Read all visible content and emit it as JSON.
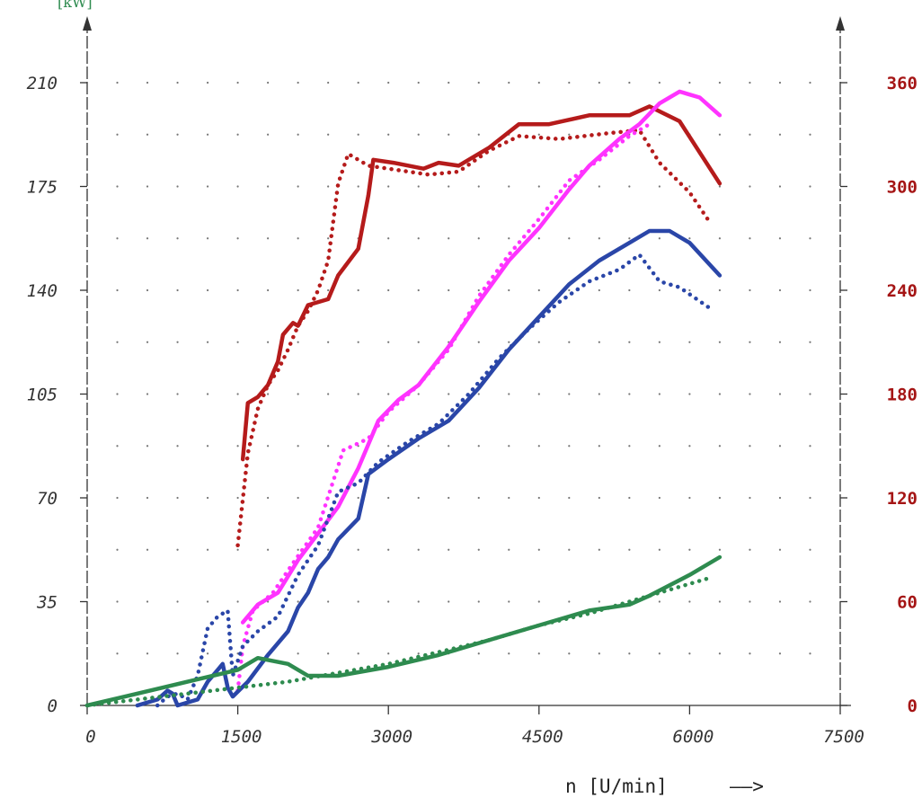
{
  "chart_data": {
    "type": "line",
    "title": "",
    "xlabel": "n [U/min]",
    "xlabel_arrow": "——>",
    "ylabel_left_fragment": "[kW]",
    "xlim": [
      0,
      7500
    ],
    "ylim_left": [
      0,
      210
    ],
    "ylim_right": [
      0,
      360
    ],
    "grid": "dotted",
    "x_ticks": [
      "0",
      "1500",
      "3000",
      "4500",
      "6000",
      "7500"
    ],
    "y_ticks_left": [
      "0",
      "35",
      "70",
      "105",
      "140",
      "175",
      "210"
    ],
    "y_ticks_right": [
      "0",
      "60",
      "120",
      "180",
      "240",
      "300",
      "360"
    ],
    "colors": {
      "red": "#b51b1b",
      "magenta": "#ff33ff",
      "blue": "#2a46a8",
      "green": "#2e8b4f",
      "axis": "#333333",
      "grid": "#777777",
      "right_ticks": "#a51515",
      "left_label": "#2e8b4f"
    },
    "series": [
      {
        "color": "red",
        "style": "solid",
        "axis": "left",
        "points": [
          [
            1550,
            83
          ],
          [
            1600,
            102
          ],
          [
            1700,
            104
          ],
          [
            1800,
            108
          ],
          [
            1900,
            116
          ],
          [
            1950,
            125
          ],
          [
            2050,
            129
          ],
          [
            2100,
            128
          ],
          [
            2200,
            135
          ],
          [
            2400,
            137
          ],
          [
            2500,
            145
          ],
          [
            2700,
            154
          ],
          [
            2800,
            172
          ],
          [
            2850,
            184
          ],
          [
            3050,
            183
          ],
          [
            3350,
            181
          ],
          [
            3500,
            183
          ],
          [
            3700,
            182
          ],
          [
            4000,
            188
          ],
          [
            4300,
            196
          ],
          [
            4600,
            196
          ],
          [
            5000,
            199
          ],
          [
            5400,
            199
          ],
          [
            5600,
            202
          ],
          [
            5900,
            197
          ],
          [
            6300,
            176
          ]
        ]
      },
      {
        "color": "red",
        "style": "dotted",
        "axis": "left",
        "points": [
          [
            1500,
            54
          ],
          [
            1600,
            85
          ],
          [
            1700,
            100
          ],
          [
            1800,
            108
          ],
          [
            1900,
            113
          ],
          [
            2000,
            120
          ],
          [
            2100,
            128
          ],
          [
            2200,
            133
          ],
          [
            2300,
            140
          ],
          [
            2400,
            150
          ],
          [
            2500,
            176
          ],
          [
            2600,
            186
          ],
          [
            2800,
            182
          ],
          [
            3000,
            181
          ],
          [
            3400,
            179
          ],
          [
            3700,
            180
          ],
          [
            4000,
            187
          ],
          [
            4300,
            192
          ],
          [
            4700,
            191
          ],
          [
            5200,
            193
          ],
          [
            5500,
            194
          ],
          [
            5700,
            183
          ],
          [
            6000,
            173
          ],
          [
            6200,
            163
          ]
        ]
      },
      {
        "color": "magenta",
        "style": "solid",
        "axis": "left",
        "points": [
          [
            1550,
            28
          ],
          [
            1700,
            34
          ],
          [
            1900,
            38
          ],
          [
            2100,
            49
          ],
          [
            2300,
            58
          ],
          [
            2500,
            67
          ],
          [
            2700,
            80
          ],
          [
            2900,
            96
          ],
          [
            3100,
            103
          ],
          [
            3300,
            108
          ],
          [
            3600,
            121
          ],
          [
            3900,
            136
          ],
          [
            4200,
            150
          ],
          [
            4500,
            161
          ],
          [
            4800,
            174
          ],
          [
            5000,
            182
          ],
          [
            5300,
            191
          ],
          [
            5500,
            196
          ],
          [
            5700,
            203
          ],
          [
            5900,
            207
          ],
          [
            6100,
            205
          ],
          [
            6300,
            199
          ]
        ]
      },
      {
        "color": "magenta",
        "style": "dotted",
        "axis": "left",
        "points": [
          [
            1500,
            5
          ],
          [
            1550,
            20
          ],
          [
            1650,
            32
          ],
          [
            1850,
            38
          ],
          [
            2050,
            48
          ],
          [
            2300,
            60
          ],
          [
            2550,
            86
          ],
          [
            2800,
            90
          ],
          [
            3000,
            99
          ],
          [
            3300,
            108
          ],
          [
            3600,
            120
          ],
          [
            3900,
            138
          ],
          [
            4200,
            152
          ],
          [
            4500,
            164
          ],
          [
            4800,
            177
          ],
          [
            5100,
            184
          ],
          [
            5400,
            192
          ],
          [
            5600,
            196
          ]
        ]
      },
      {
        "color": "blue",
        "style": "solid",
        "axis": "left",
        "points": [
          [
            500,
            0
          ],
          [
            700,
            2
          ],
          [
            800,
            5
          ],
          [
            850,
            4
          ],
          [
            900,
            0
          ],
          [
            1100,
            2
          ],
          [
            1200,
            8
          ],
          [
            1300,
            12
          ],
          [
            1350,
            14
          ],
          [
            1400,
            6
          ],
          [
            1450,
            3
          ],
          [
            1600,
            8
          ],
          [
            1800,
            17
          ],
          [
            2000,
            25
          ],
          [
            2100,
            33
          ],
          [
            2200,
            38
          ],
          [
            2300,
            46
          ],
          [
            2400,
            50
          ],
          [
            2500,
            56
          ],
          [
            2700,
            63
          ],
          [
            2800,
            78
          ],
          [
            3000,
            83
          ],
          [
            3300,
            90
          ],
          [
            3600,
            96
          ],
          [
            3900,
            107
          ],
          [
            4200,
            120
          ],
          [
            4500,
            131
          ],
          [
            4800,
            142
          ],
          [
            5100,
            150
          ],
          [
            5400,
            156
          ],
          [
            5600,
            160
          ],
          [
            5800,
            160
          ],
          [
            6000,
            156
          ],
          [
            6300,
            145
          ]
        ]
      },
      {
        "color": "blue",
        "style": "dotted",
        "axis": "left",
        "points": [
          [
            700,
            0
          ],
          [
            800,
            3
          ],
          [
            900,
            4
          ],
          [
            1000,
            2
          ],
          [
            1100,
            10
          ],
          [
            1200,
            26
          ],
          [
            1300,
            30
          ],
          [
            1400,
            32
          ],
          [
            1450,
            10
          ],
          [
            1550,
            20
          ],
          [
            1700,
            25
          ],
          [
            1900,
            30
          ],
          [
            2100,
            44
          ],
          [
            2300,
            54
          ],
          [
            2500,
            72
          ],
          [
            2700,
            75
          ],
          [
            2900,
            82
          ],
          [
            3200,
            89
          ],
          [
            3500,
            95
          ],
          [
            3800,
            105
          ],
          [
            4100,
            117
          ],
          [
            4400,
            127
          ],
          [
            4700,
            136
          ],
          [
            5000,
            143
          ],
          [
            5300,
            147
          ],
          [
            5500,
            152
          ],
          [
            5700,
            143
          ],
          [
            5900,
            141
          ],
          [
            6200,
            134
          ]
        ]
      },
      {
        "color": "green",
        "style": "solid",
        "axis": "left",
        "points": [
          [
            0,
            0
          ],
          [
            500,
            4
          ],
          [
            1000,
            8
          ],
          [
            1500,
            12
          ],
          [
            1700,
            16
          ],
          [
            2000,
            14
          ],
          [
            2200,
            10
          ],
          [
            2500,
            10
          ],
          [
            3000,
            13
          ],
          [
            3500,
            17
          ],
          [
            4000,
            22
          ],
          [
            4500,
            27
          ],
          [
            5000,
            32
          ],
          [
            5400,
            34
          ],
          [
            5600,
            37
          ],
          [
            6000,
            44
          ],
          [
            6300,
            50
          ]
        ]
      },
      {
        "color": "green",
        "style": "dotted",
        "axis": "left",
        "points": [
          [
            0,
            0
          ],
          [
            500,
            2
          ],
          [
            1000,
            4
          ],
          [
            1500,
            6
          ],
          [
            2000,
            8
          ],
          [
            2500,
            11
          ],
          [
            3000,
            14
          ],
          [
            3500,
            18
          ],
          [
            4000,
            22
          ],
          [
            4500,
            27
          ],
          [
            5000,
            31
          ],
          [
            5500,
            36
          ],
          [
            6200,
            43
          ]
        ]
      }
    ]
  }
}
